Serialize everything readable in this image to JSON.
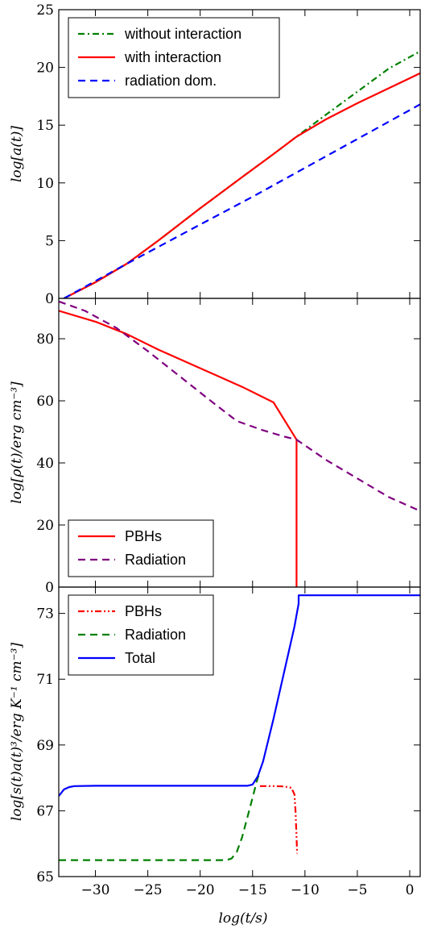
{
  "xlabel": "log(t/s)",
  "xlim": [
    -33.5,
    1
  ],
  "xticks": [
    -30,
    -25,
    -20,
    -15,
    -10,
    -5,
    0
  ],
  "chart_data": [
    {
      "type": "line",
      "ylabel": "log[a(t)]",
      "ylim": [
        0,
        25
      ],
      "yticks": [
        0,
        5,
        10,
        15,
        20,
        25
      ],
      "legend": "top-left",
      "series": [
        {
          "name": "without interaction",
          "color": "#008000",
          "style": "dashdot",
          "x": [
            -33,
            -30,
            -27,
            -24,
            -20,
            -16,
            -13,
            -10.8,
            -8,
            -5,
            -2,
            1
          ],
          "y": [
            0,
            1.4,
            3.0,
            5.0,
            7.8,
            10.5,
            12.5,
            14.0,
            15.9,
            17.9,
            19.9,
            21.4
          ]
        },
        {
          "name": "with interaction",
          "color": "#ff0000",
          "style": "solid",
          "x": [
            -33,
            -30,
            -27,
            -24,
            -20,
            -16,
            -13,
            -10.8,
            -8,
            -5,
            -2,
            1
          ],
          "y": [
            0,
            1.4,
            3.0,
            5.0,
            7.8,
            10.5,
            12.5,
            14.0,
            15.5,
            16.9,
            18.2,
            19.5
          ]
        },
        {
          "name": "radiation dom.",
          "color": "#0000ff",
          "style": "dashed",
          "x": [
            -33,
            -27,
            -20,
            -15,
            -10,
            -5,
            1
          ],
          "y": [
            0,
            3.0,
            6.4,
            8.8,
            11.3,
            13.8,
            16.8
          ]
        }
      ]
    },
    {
      "type": "line",
      "ylabel": "log[ρ(t)/erg cm⁻³]",
      "ylim": [
        0,
        93
      ],
      "yticks": [
        0,
        20,
        40,
        60,
        80
      ],
      "legend": "bottom-left",
      "series": [
        {
          "name": "PBHs",
          "color": "#ff0000",
          "style": "solid",
          "x": [
            -33.5,
            -30,
            -27,
            -24,
            -20,
            -16,
            -13,
            -10.8,
            -10.8,
            -10.8
          ],
          "y": [
            89,
            85.5,
            81.5,
            76.5,
            70.5,
            64.5,
            59.5,
            47.5,
            20,
            0
          ]
        },
        {
          "name": "Radiation",
          "color": "#800080",
          "style": "dashed",
          "x": [
            -33.5,
            -31,
            -28,
            -25,
            -22,
            -19,
            -16.5,
            -14,
            -12,
            -10.8,
            -8,
            -5,
            -2,
            1
          ],
          "y": [
            92,
            89,
            83.5,
            76,
            68,
            60,
            53.5,
            50.5,
            48.5,
            47.5,
            41,
            35,
            29,
            24.5
          ]
        }
      ]
    },
    {
      "type": "line",
      "ylabel": "log[s(t)a(t)³/erg K⁻¹ cm⁻³]",
      "ylim": [
        65,
        73.8
      ],
      "yticks": [
        65,
        67,
        69,
        71,
        73
      ],
      "legend": "top-left",
      "series": [
        {
          "name": "PBHs",
          "color": "#ff0000",
          "style": "dashdotdot",
          "x": [
            -14.3,
            -13,
            -12,
            -11.3,
            -11.0,
            -10.9,
            -10.8,
            -10.75
          ],
          "y": [
            67.75,
            67.75,
            67.74,
            67.7,
            67.5,
            67.0,
            66.2,
            65.7
          ]
        },
        {
          "name": "Radiation",
          "color": "#008000",
          "style": "dashed",
          "x": [
            -33.5,
            -20,
            -17.5,
            -17,
            -16.5,
            -16,
            -15.5,
            -15,
            -14.6,
            -14.3
          ],
          "y": [
            65.5,
            65.5,
            65.5,
            65.55,
            65.75,
            66.2,
            66.8,
            67.4,
            67.9,
            68.2
          ]
        },
        {
          "name": "Total",
          "color": "#0000ff",
          "style": "solid",
          "x": [
            -33.5,
            -33,
            -32.5,
            -32,
            -30,
            -20,
            -15.5,
            -15,
            -14.5,
            -14,
            -13,
            -12,
            -11,
            -10.6,
            -10.6,
            1
          ],
          "y": [
            67.45,
            67.65,
            67.72,
            67.75,
            67.76,
            67.76,
            67.76,
            67.8,
            68.05,
            68.5,
            69.8,
            71.2,
            72.6,
            73.3,
            73.55,
            73.55
          ]
        }
      ]
    }
  ]
}
